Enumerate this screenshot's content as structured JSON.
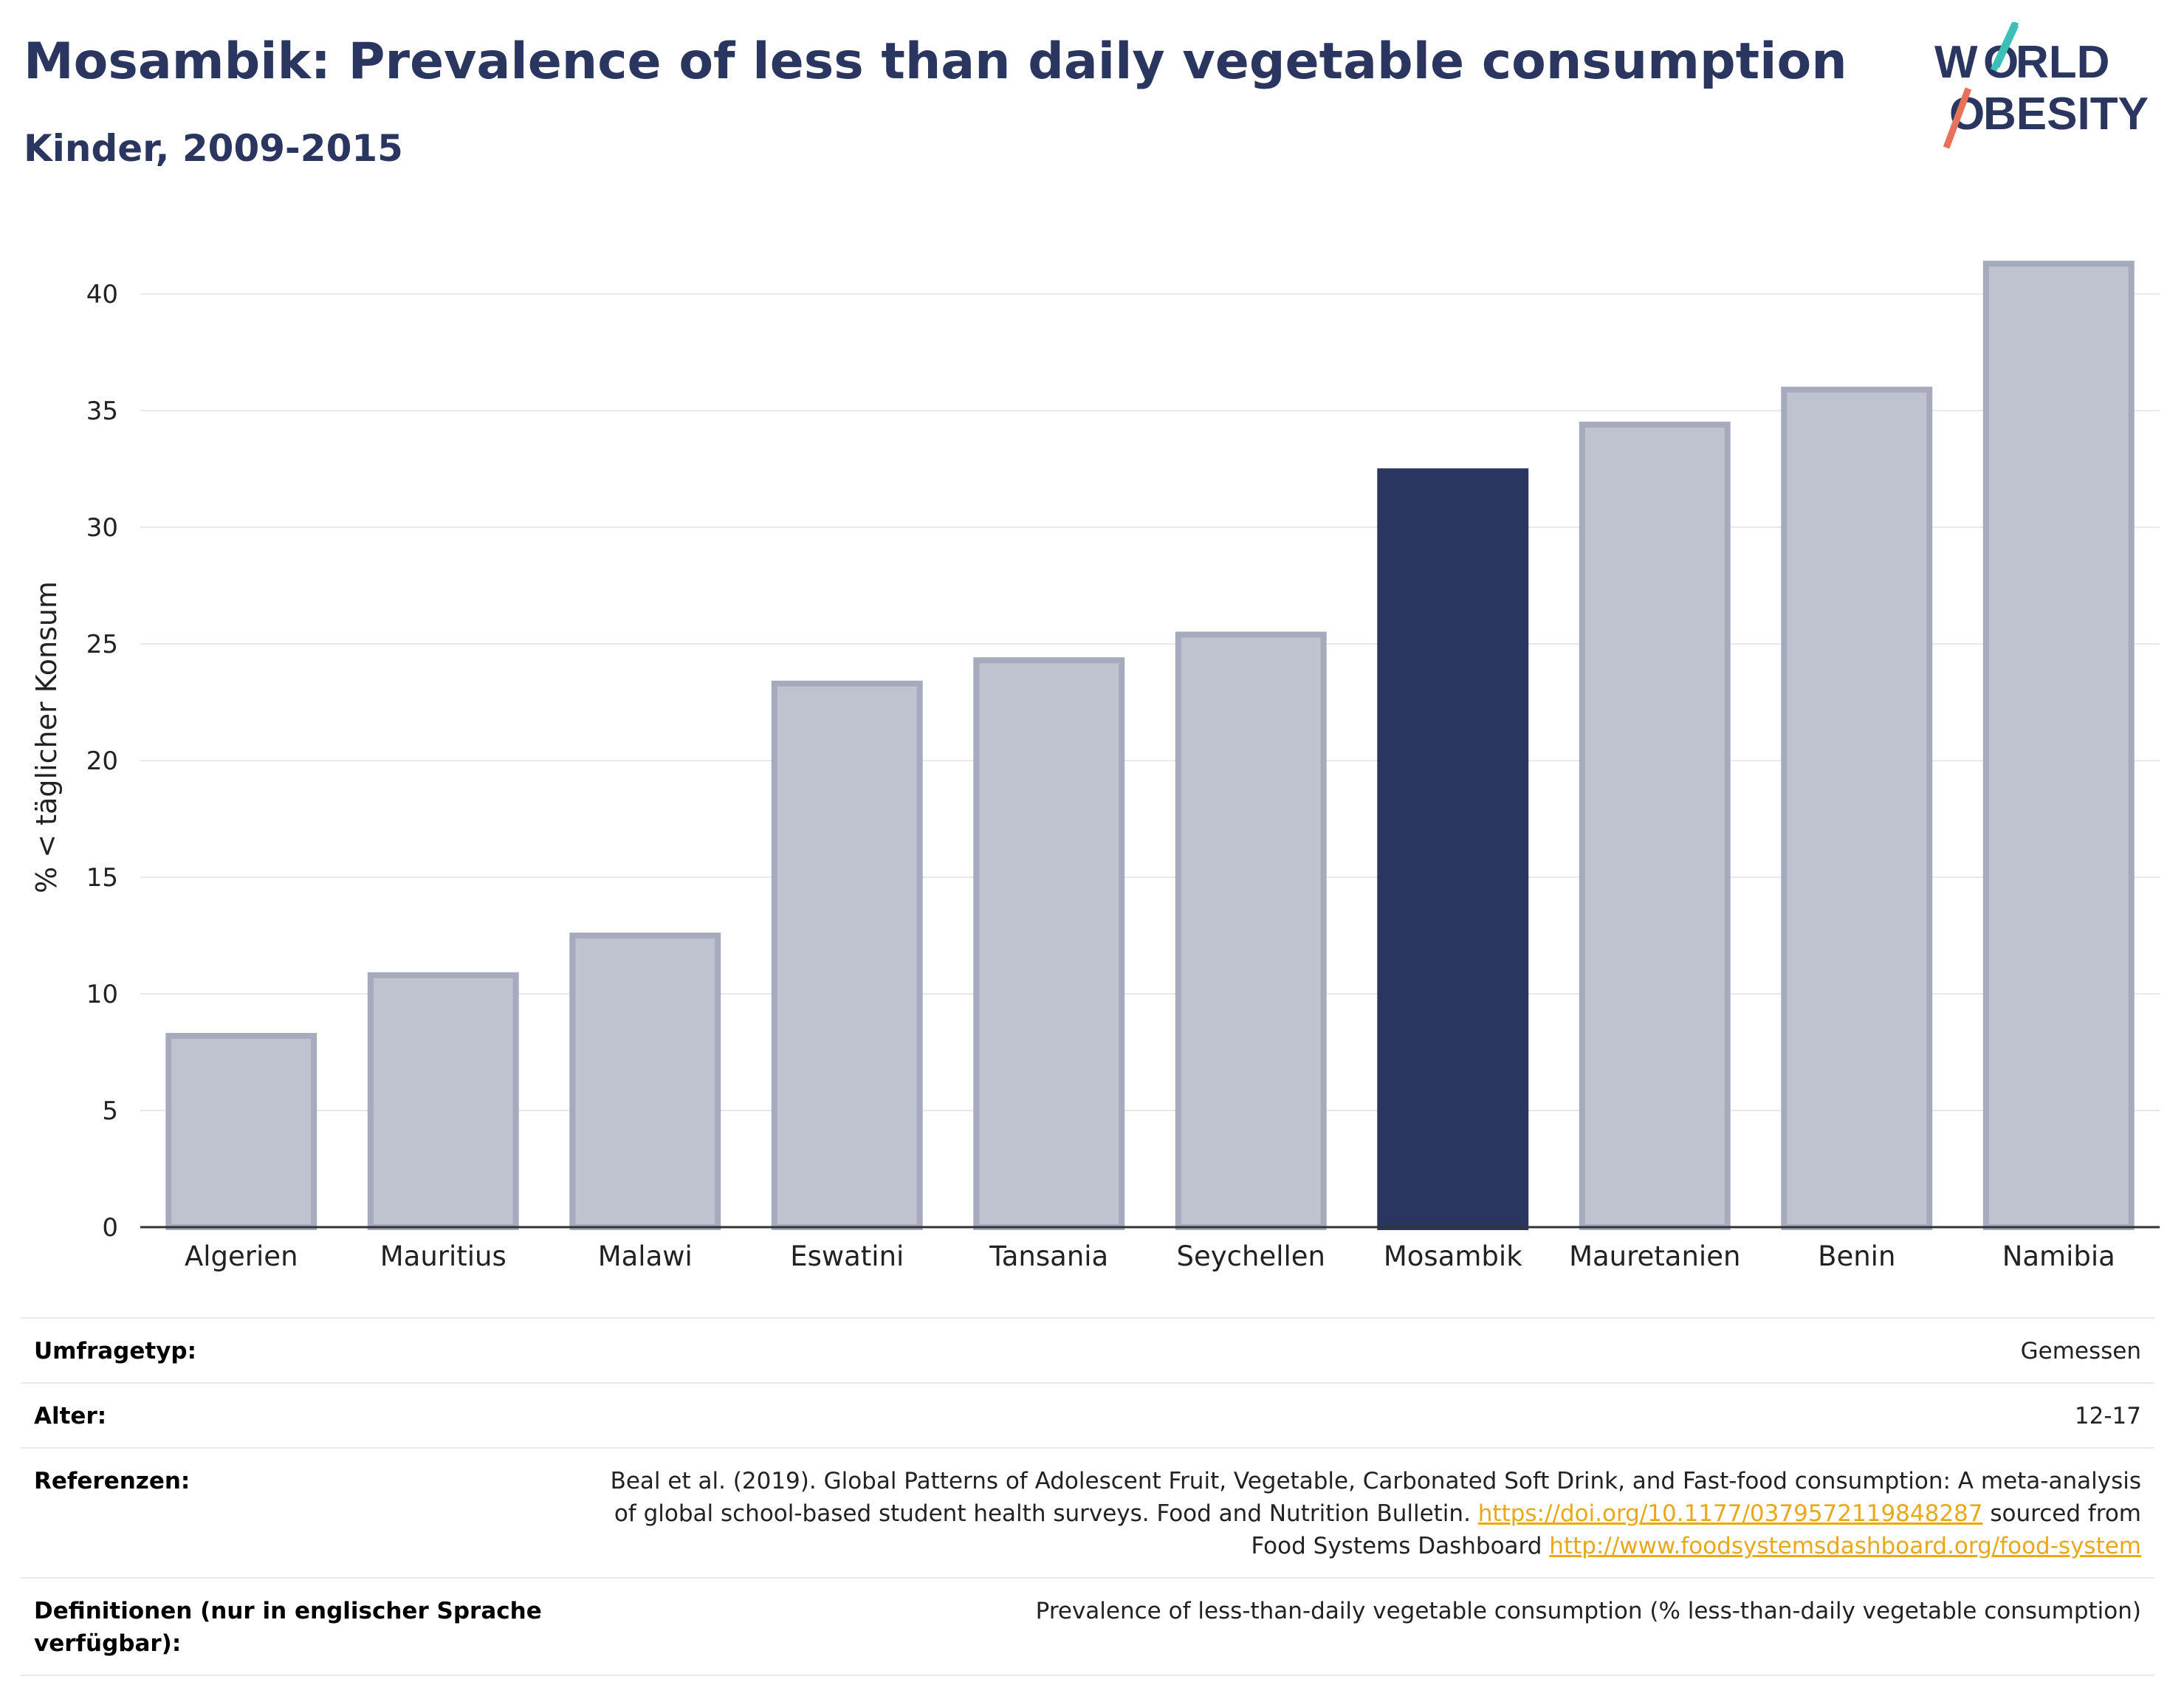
{
  "header": {
    "title": "Mosambik: Prevalence of less than daily vegetable consumption",
    "subtitle": "Kinder, 2009-2015"
  },
  "logo": {
    "line1": "W  RLD",
    "line2": "BESITY",
    "accent_teal": "#3bbfb6",
    "accent_coral": "#e8715a",
    "text_color": "#2a3560"
  },
  "colors": {
    "highlight": "#2a3560",
    "other": "#bfc2cf",
    "other_stroke": "#a5aabd"
  },
  "chart_data": {
    "type": "bar",
    "title": "Mosambik: Prevalence of less than daily vegetable consumption",
    "subtitle": "Kinder, 2009-2015",
    "ylabel": "% < täglicher Konsum",
    "xlabel": "",
    "ylim": [
      0,
      42
    ],
    "yticks": [
      0,
      5,
      10,
      15,
      20,
      25,
      30,
      35,
      40
    ],
    "grid": true,
    "categories": [
      "Algerien",
      "Mauritius",
      "Malawi",
      "Eswatini",
      "Tansania",
      "Seychellen",
      "Mosambik",
      "Mauretanien",
      "Benin",
      "Namibia"
    ],
    "values": [
      8.2,
      10.8,
      12.5,
      23.3,
      24.3,
      25.4,
      32.4,
      34.4,
      35.9,
      41.3
    ],
    "highlight": "Mosambik"
  },
  "info": [
    {
      "key": "Umfragetyp:",
      "value": "Gemessen"
    },
    {
      "key": "Alter:",
      "value": "12-17"
    },
    {
      "key": "Referenzen:",
      "value_pre": "Beal et al. (2019). Global Patterns of Adolescent Fruit, Vegetable, Carbonated Soft Drink, and Fast-food consumption: A meta-analysis of global school-based student health surveys. Food and Nutrition Bulletin. ",
      "link1": "https://doi.org/10.1177/0379572119848287",
      "value_mid": " sourced from Food Systems Dashboard ",
      "link2": "http://www.foodsystemsdashboard.org/food-system"
    },
    {
      "key": "Definitionen (nur in englischer Sprache verfügbar):",
      "value": "Prevalence of less-than-daily vegetable consumption (% less-than-daily vegetable consumption)"
    }
  ]
}
